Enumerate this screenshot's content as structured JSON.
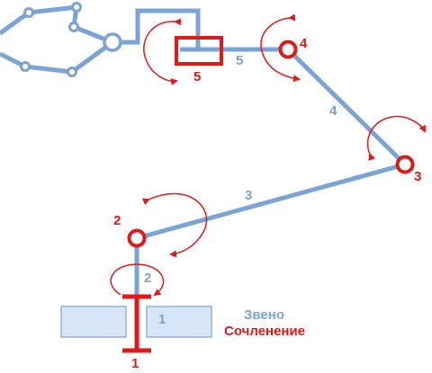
{
  "colors": {
    "link": "#7aa3d6",
    "joint": "#e01919",
    "base_fill": "#d7e6f6",
    "base_stroke": "#8fb3de"
  },
  "links": [
    {
      "id": "link-1",
      "label": "1"
    },
    {
      "id": "link-2",
      "label": "2"
    },
    {
      "id": "link-3",
      "label": "3"
    },
    {
      "id": "link-4",
      "label": "4"
    },
    {
      "id": "link-5",
      "label": "5"
    }
  ],
  "joints": [
    {
      "id": "joint-1",
      "label": "1"
    },
    {
      "id": "joint-2",
      "label": "2"
    },
    {
      "id": "joint-3",
      "label": "3"
    },
    {
      "id": "joint-4",
      "label": "4"
    },
    {
      "id": "joint-5",
      "label": "5"
    }
  ],
  "legend": {
    "link": "Звено",
    "joint": "Сочленение"
  }
}
